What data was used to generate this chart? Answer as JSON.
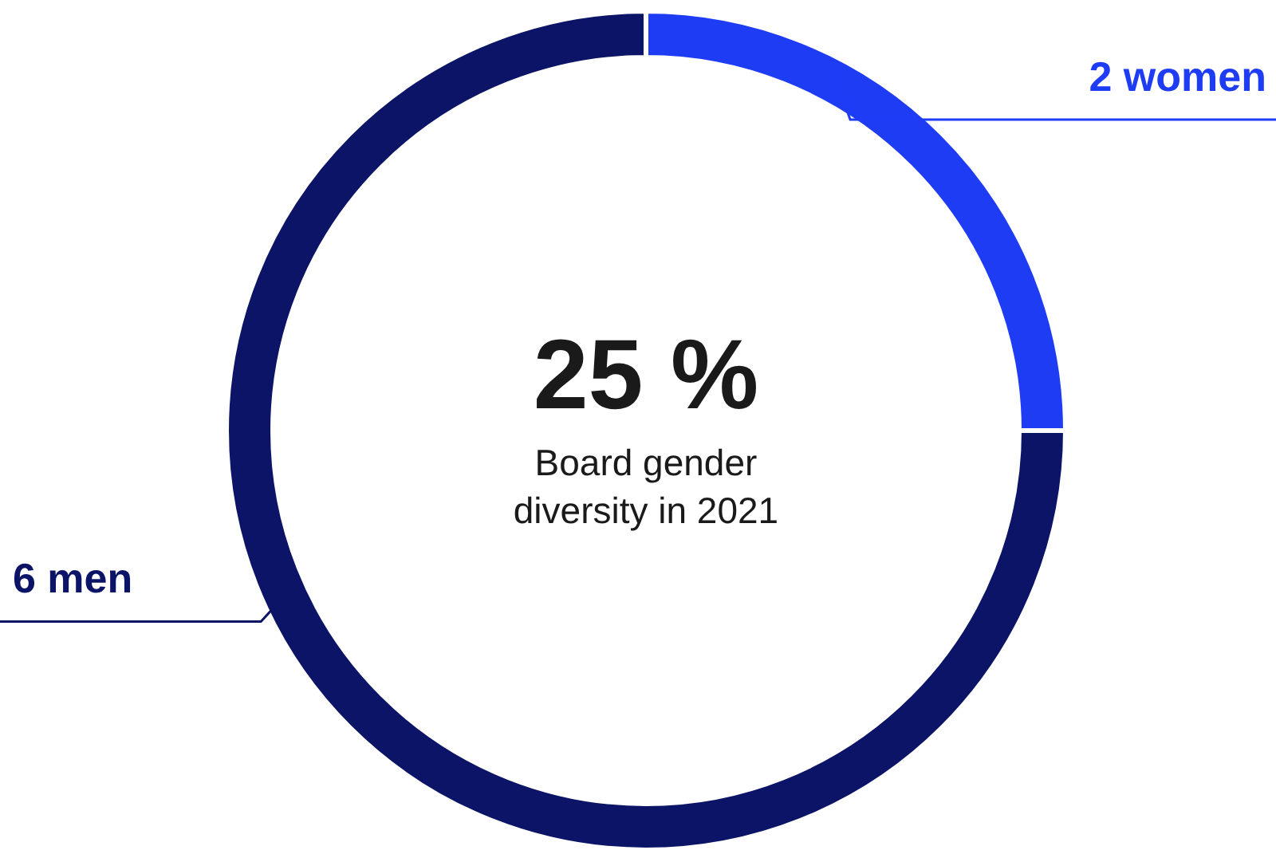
{
  "chart_data": {
    "type": "donut",
    "categories": [
      "2 women",
      "6 men"
    ],
    "values": [
      25,
      75
    ],
    "colors": [
      "#1f3cf5",
      "#0b1466"
    ],
    "annotations": [
      "25 %",
      "Board gender diversity in 2021"
    ]
  }
}
